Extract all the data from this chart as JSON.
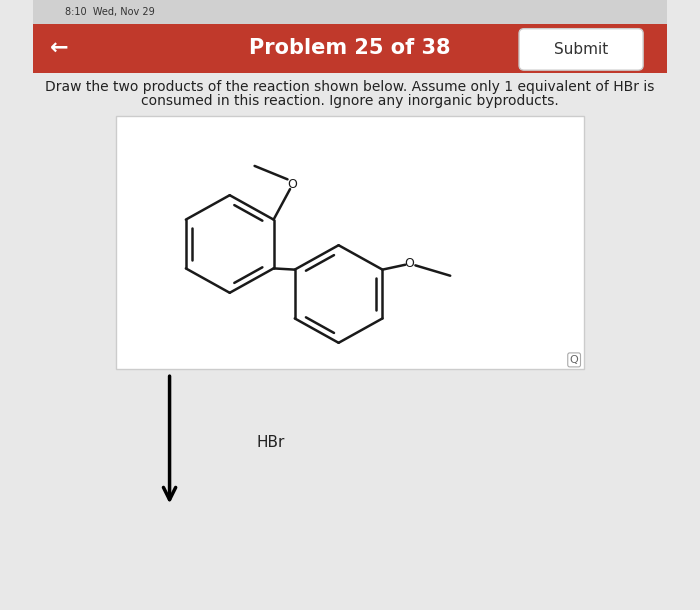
{
  "title": "Problem 25 of 38",
  "submit_text": "Submit",
  "header_color": "#c0392b",
  "header_text_color": "#ffffff",
  "bg_color": "#e8e8e8",
  "problem_text_line1": "Draw the two products of the reaction shown below. Assume only 1 equivalent of HBr is",
  "problem_text_line2": "consumed in this reaction. Ignore any inorganic byproducts.",
  "reagent_text": "HBr",
  "text_color": "#222222",
  "box_border_color": "#cccccc",
  "line_color": "#1a1a1a",
  "submit_bg": "#ffffff",
  "submit_border": "#cccccc",
  "status_bar_color": "#d0d0d0",
  "status_text": "8:10  Wed, Nov 29"
}
